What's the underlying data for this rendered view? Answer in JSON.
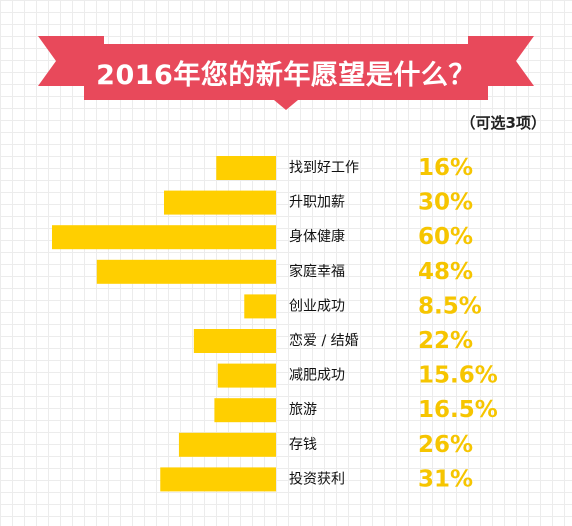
{
  "colors": {
    "banner": "#e8495b",
    "banner_fold": "#b32b3d",
    "bar": "#ffcf00",
    "value_text": "#f6c500"
  },
  "header": {
    "title": "2016年您的新年愿望是什么？",
    "note": "（可选3项）"
  },
  "chart_data": {
    "type": "bar",
    "orientation": "horizontal",
    "title": "2016年您的新年愿望是什么？",
    "note": "（可选3项）",
    "categories": [
      "找到好工作",
      "升职加薪",
      "身体健康",
      "家庭幸福",
      "创业成功",
      "恋爱 / 结婚",
      "减肥成功",
      "旅游",
      "存钱",
      "投资获利"
    ],
    "values": [
      16,
      30,
      60,
      48,
      8.5,
      22,
      15.6,
      16.5,
      26,
      31
    ],
    "value_labels": [
      "16%",
      "30%",
      "60%",
      "48%",
      "8.5%",
      "22%",
      "15.6%",
      "16.5%",
      "26%",
      "31%"
    ],
    "unit": "%",
    "xlim": [
      0,
      60
    ],
    "grid": true,
    "legend": "none"
  }
}
